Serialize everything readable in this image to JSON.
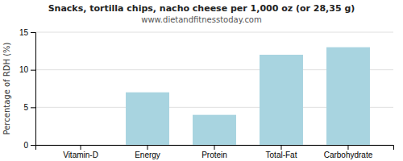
{
  "chart_data": {
    "type": "bar",
    "title": "Snacks, tortilla chips, nacho cheese per 1,000 oz (or 28,35 g)",
    "subtitle": "www.dietandfitnesstoday.com",
    "categories": [
      "Vitamin-D",
      "Energy",
      "Protein",
      "Total-Fat",
      "Carbohydrate"
    ],
    "values": [
      0,
      7,
      4,
      12,
      13
    ],
    "color": "#a8d4e0",
    "ylabel": "Percentage of RDH (%)",
    "ylim": [
      0,
      15
    ],
    "yticks": [
      0,
      5,
      10,
      15
    ],
    "grid": true
  }
}
